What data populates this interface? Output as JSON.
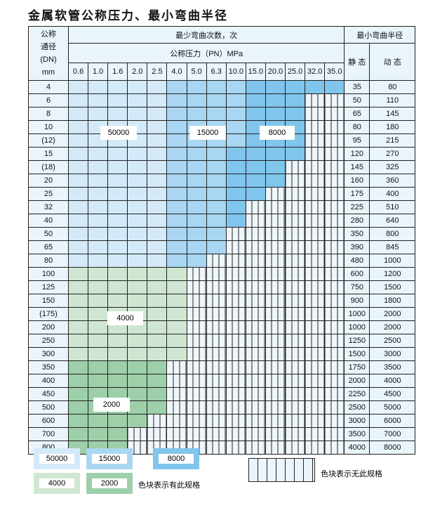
{
  "title": "金属软管公称压力、最小弯曲半径",
  "header": {
    "dn_label": [
      "公称",
      "通径",
      "(DN)",
      "mm"
    ],
    "cycles_label": "最少弯曲次数，次",
    "pressure_label": "公称压力（PN）MPa",
    "radius_label": "最小弯曲半径",
    "static_label": "静 态",
    "dynamic_label": "动 态",
    "pressures": [
      "0.6",
      "1.0",
      "1.6",
      "2.0",
      "2.5",
      "4.0",
      "5.0",
      "6.3",
      "10.0",
      "15.0",
      "20.0",
      "25.0",
      "32.0",
      "35.0"
    ]
  },
  "tiers": {
    "a": "50000",
    "b": "15000",
    "c": "8000",
    "d": "4000",
    "e": "2000"
  },
  "tier_colors": {
    "a": "#d4eaf8",
    "b": "#a9d6f2",
    "c": "#80c5ec",
    "d": "#cfe6d3",
    "e": "#9dcfa9",
    "none": "#eef6fb"
  },
  "rows": [
    {
      "dn": "4",
      "static": "35",
      "dynamic": "80",
      "cells": "aaaaabbbbccccc"
    },
    {
      "dn": "6",
      "static": "50",
      "dynamic": "110",
      "cells": "aaaaabbbbccc--"
    },
    {
      "dn": "8",
      "static": "65",
      "dynamic": "145",
      "cells": "aaaaabbbbccc--"
    },
    {
      "dn": "10",
      "static": "80",
      "dynamic": "180",
      "cells": "aaaaabbbbccc--"
    },
    {
      "dn": "(12)",
      "static": "95",
      "dynamic": "215",
      "cells": "aaaaabbbbccc--"
    },
    {
      "dn": "15",
      "static": "120",
      "dynamic": "270",
      "cells": "aaaaabbbcccc--"
    },
    {
      "dn": "(18)",
      "static": "145",
      "dynamic": "325",
      "cells": "aaaaabbbccc---"
    },
    {
      "dn": "20",
      "static": "160",
      "dynamic": "360",
      "cells": "aaaaabbbccc---"
    },
    {
      "dn": "25",
      "static": "175",
      "dynamic": "400",
      "cells": "aaaaabbbcc----"
    },
    {
      "dn": "32",
      "static": "225",
      "dynamic": "510",
      "cells": "aaaaabbbc-----"
    },
    {
      "dn": "40",
      "static": "280",
      "dynamic": "640",
      "cells": "aaaaabbbc-----"
    },
    {
      "dn": "50",
      "static": "350",
      "dynamic": "800",
      "cells": "aaaaabbb------"
    },
    {
      "dn": "65",
      "static": "390",
      "dynamic": "845",
      "cells": "aaaaabbb------"
    },
    {
      "dn": "80",
      "static": "480",
      "dynamic": "1000",
      "cells": "aaaaabb-------"
    },
    {
      "dn": "100",
      "static": "600",
      "dynamic": "1200",
      "cells": "dddddd--------"
    },
    {
      "dn": "125",
      "static": "750",
      "dynamic": "1500",
      "cells": "dddddd--------"
    },
    {
      "dn": "150",
      "static": "900",
      "dynamic": "1800",
      "cells": "dddddd--------"
    },
    {
      "dn": "(175)",
      "static": "1000",
      "dynamic": "2000",
      "cells": "dddddd--------"
    },
    {
      "dn": "200",
      "static": "1000",
      "dynamic": "2000",
      "cells": "dddddd--------"
    },
    {
      "dn": "250",
      "static": "1250",
      "dynamic": "2500",
      "cells": "dddddd--------"
    },
    {
      "dn": "300",
      "static": "1500",
      "dynamic": "3000",
      "cells": "dddddd--------"
    },
    {
      "dn": "350",
      "static": "1750",
      "dynamic": "3500",
      "cells": "eeeee---------"
    },
    {
      "dn": "400",
      "static": "2000",
      "dynamic": "4000",
      "cells": "eeeee---------"
    },
    {
      "dn": "450",
      "static": "2250",
      "dynamic": "4500",
      "cells": "eeeee---------"
    },
    {
      "dn": "500",
      "static": "2500",
      "dynamic": "5000",
      "cells": "eeeee---------"
    },
    {
      "dn": "600",
      "static": "3000",
      "dynamic": "6000",
      "cells": "eeee----------"
    },
    {
      "dn": "700",
      "static": "3500",
      "dynamic": "7000",
      "cells": "eee-----------"
    },
    {
      "dn": "800",
      "static": "4000",
      "dynamic": "8000",
      "cells": "eee-----------"
    }
  ],
  "legend": {
    "available_text": "色块表示有此规格",
    "unavailable_text": "色块表示无此规格"
  }
}
